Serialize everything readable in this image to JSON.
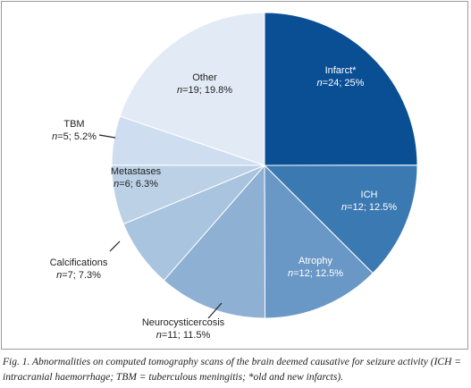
{
  "chart_data": {
    "type": "pie",
    "title": "",
    "start_angle_deg": 0,
    "direction": "clockwise",
    "slices": [
      {
        "name": "Infarct*",
        "n": 24,
        "percent": 25,
        "label_line2": "n=24; 25%",
        "color": "#0a4f94",
        "text_color": "#ffffff"
      },
      {
        "name": "ICH",
        "n": 12,
        "percent": 12.5,
        "label_line2": "n=12; 12.5%",
        "color": "#3b79b2",
        "text_color": "#ffffff"
      },
      {
        "name": "Atrophy",
        "n": 12,
        "percent": 12.5,
        "label_line2": "n=12; 12.5%",
        "color": "#6a98c6",
        "text_color": "#ffffff"
      },
      {
        "name": "Neurocysticercosis",
        "n": 11,
        "percent": 11.5,
        "label_line2": "n=11; 11.5%",
        "color": "#8eb0d3",
        "text_color": "#222222"
      },
      {
        "name": "Calcifications",
        "n": 7,
        "percent": 7.3,
        "label_line2": "n=7; 7.3%",
        "color": "#a9c4de",
        "text_color": "#222222"
      },
      {
        "name": "Metastases",
        "n": 6,
        "percent": 6.3,
        "label_line2": "n=6; 6.3%",
        "color": "#bcd1e6",
        "text_color": "#222222"
      },
      {
        "name": "TBM",
        "n": 5,
        "percent": 5.2,
        "label_line2": "n=5; 5.2%",
        "color": "#cedef0",
        "text_color": "#222222"
      },
      {
        "name": "Other",
        "n": 19,
        "percent": 19.8,
        "label_line2": "n=19; 19.8%",
        "color": "#e2ebf5",
        "text_color": "#222222"
      }
    ]
  },
  "caption": "Fig. 1. Abnormalities on computed tomography scans of the brain deemed causative for seizure activity (ICH = intracranial haemorrhage; TBM = tuberculous meningitis; *old and new infarcts)."
}
